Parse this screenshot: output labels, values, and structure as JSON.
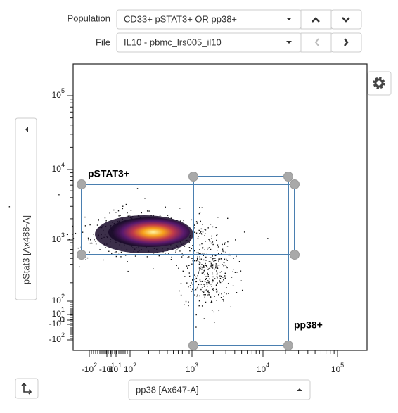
{
  "controls": {
    "population": {
      "label": "Population",
      "value": "CD33+ pSTAT3+ OR pp38+"
    },
    "file": {
      "label": "File",
      "value": "IL10 - pbmc_lrs005_il10"
    }
  },
  "plot": {
    "x_axis_label": "pp38 [Ax647-A]",
    "y_axis_label": "pStat3 [Ax488-A]",
    "gates": [
      {
        "label": "pSTAT3+"
      },
      {
        "label": "pp38+"
      }
    ],
    "x_ticks": [
      {
        "base": "-10",
        "exp": "2"
      },
      {
        "base": "-10",
        "exp": "1"
      },
      {
        "base": "0"
      },
      {
        "base": "10",
        "exp": "1"
      },
      {
        "base": "10",
        "exp": "2"
      },
      {
        "base": "10",
        "exp": "3"
      },
      {
        "base": "10",
        "exp": "4"
      },
      {
        "base": "10",
        "exp": "5"
      }
    ],
    "y_ticks": [
      {
        "base": "10",
        "exp": "5"
      },
      {
        "base": "10",
        "exp": "4"
      },
      {
        "base": "10",
        "exp": "3"
      },
      {
        "base": "10",
        "exp": "2"
      },
      {
        "base": "10",
        "exp": "1"
      },
      {
        "base": "0"
      },
      {
        "base": "-10",
        "exp": "1"
      },
      {
        "base": "-10",
        "exp": "2"
      }
    ]
  }
}
